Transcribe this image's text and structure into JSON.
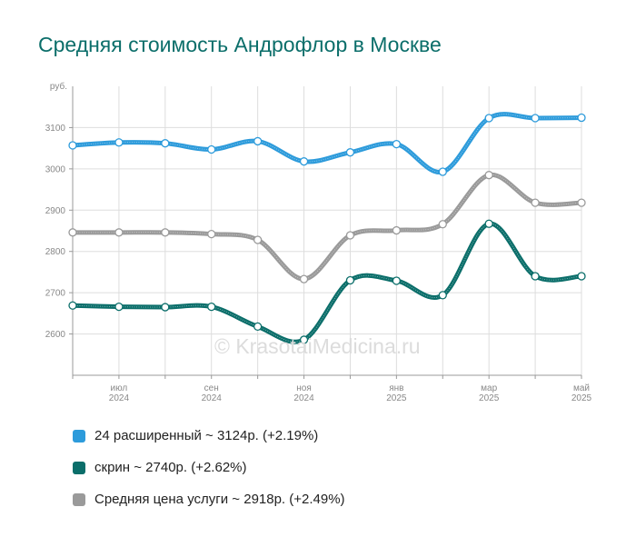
{
  "title": "Средняя стоимость Андрофлор в Москве",
  "watermark": "© KrasotaiMedicina.ru",
  "chart_data": {
    "type": "line",
    "y_unit": "руб.",
    "ylim": [
      2500,
      3200
    ],
    "yticks": [
      2600,
      2700,
      2800,
      2900,
      3000,
      3100
    ],
    "grid": true,
    "x": [
      "2024-06",
      "2024-07",
      "2024-08",
      "2024-09",
      "2024-10",
      "2024-11",
      "2024-12",
      "2025-01",
      "2025-02",
      "2025-03",
      "2025-04",
      "2025-05"
    ],
    "xtick_labels": [
      {
        "month": "июл",
        "year": "2024",
        "index": 1
      },
      {
        "month": "сен",
        "year": "2024",
        "index": 3
      },
      {
        "month": "ноя",
        "year": "2024",
        "index": 5
      },
      {
        "month": "янв",
        "year": "2025",
        "index": 7
      },
      {
        "month": "мар",
        "year": "2025",
        "index": 9
      },
      {
        "month": "май",
        "year": "2025",
        "index": 11
      }
    ],
    "series": [
      {
        "name": "24 расширенный",
        "color": "#2d9bdb",
        "values": [
          3057,
          3064,
          3062,
          3047,
          3067,
          3018,
          3040,
          3060,
          2993,
          3123,
          3123,
          3124
        ]
      },
      {
        "name": "скрин",
        "color": "#0b6e6a",
        "values": [
          2669,
          2666,
          2665,
          2666,
          2618,
          2586,
          2730,
          2729,
          2694,
          2867,
          2740,
          2740
        ]
      },
      {
        "name": "Средняя цена услуги",
        "color": "#9a9a9a",
        "values": [
          2846,
          2846,
          2846,
          2842,
          2828,
          2733,
          2839,
          2851,
          2866,
          2985,
          2918,
          2918
        ]
      }
    ]
  },
  "legend": [
    {
      "label": "24 расширенный ~ 3124р. (+2.19%)",
      "color": "#2d9bdb"
    },
    {
      "label": "скрин ~ 2740р. (+2.62%)",
      "color": "#0b6e6a"
    },
    {
      "label": "Средняя цена услуги ~ 2918р. (+2.49%)",
      "color": "#9a9a9a"
    }
  ]
}
